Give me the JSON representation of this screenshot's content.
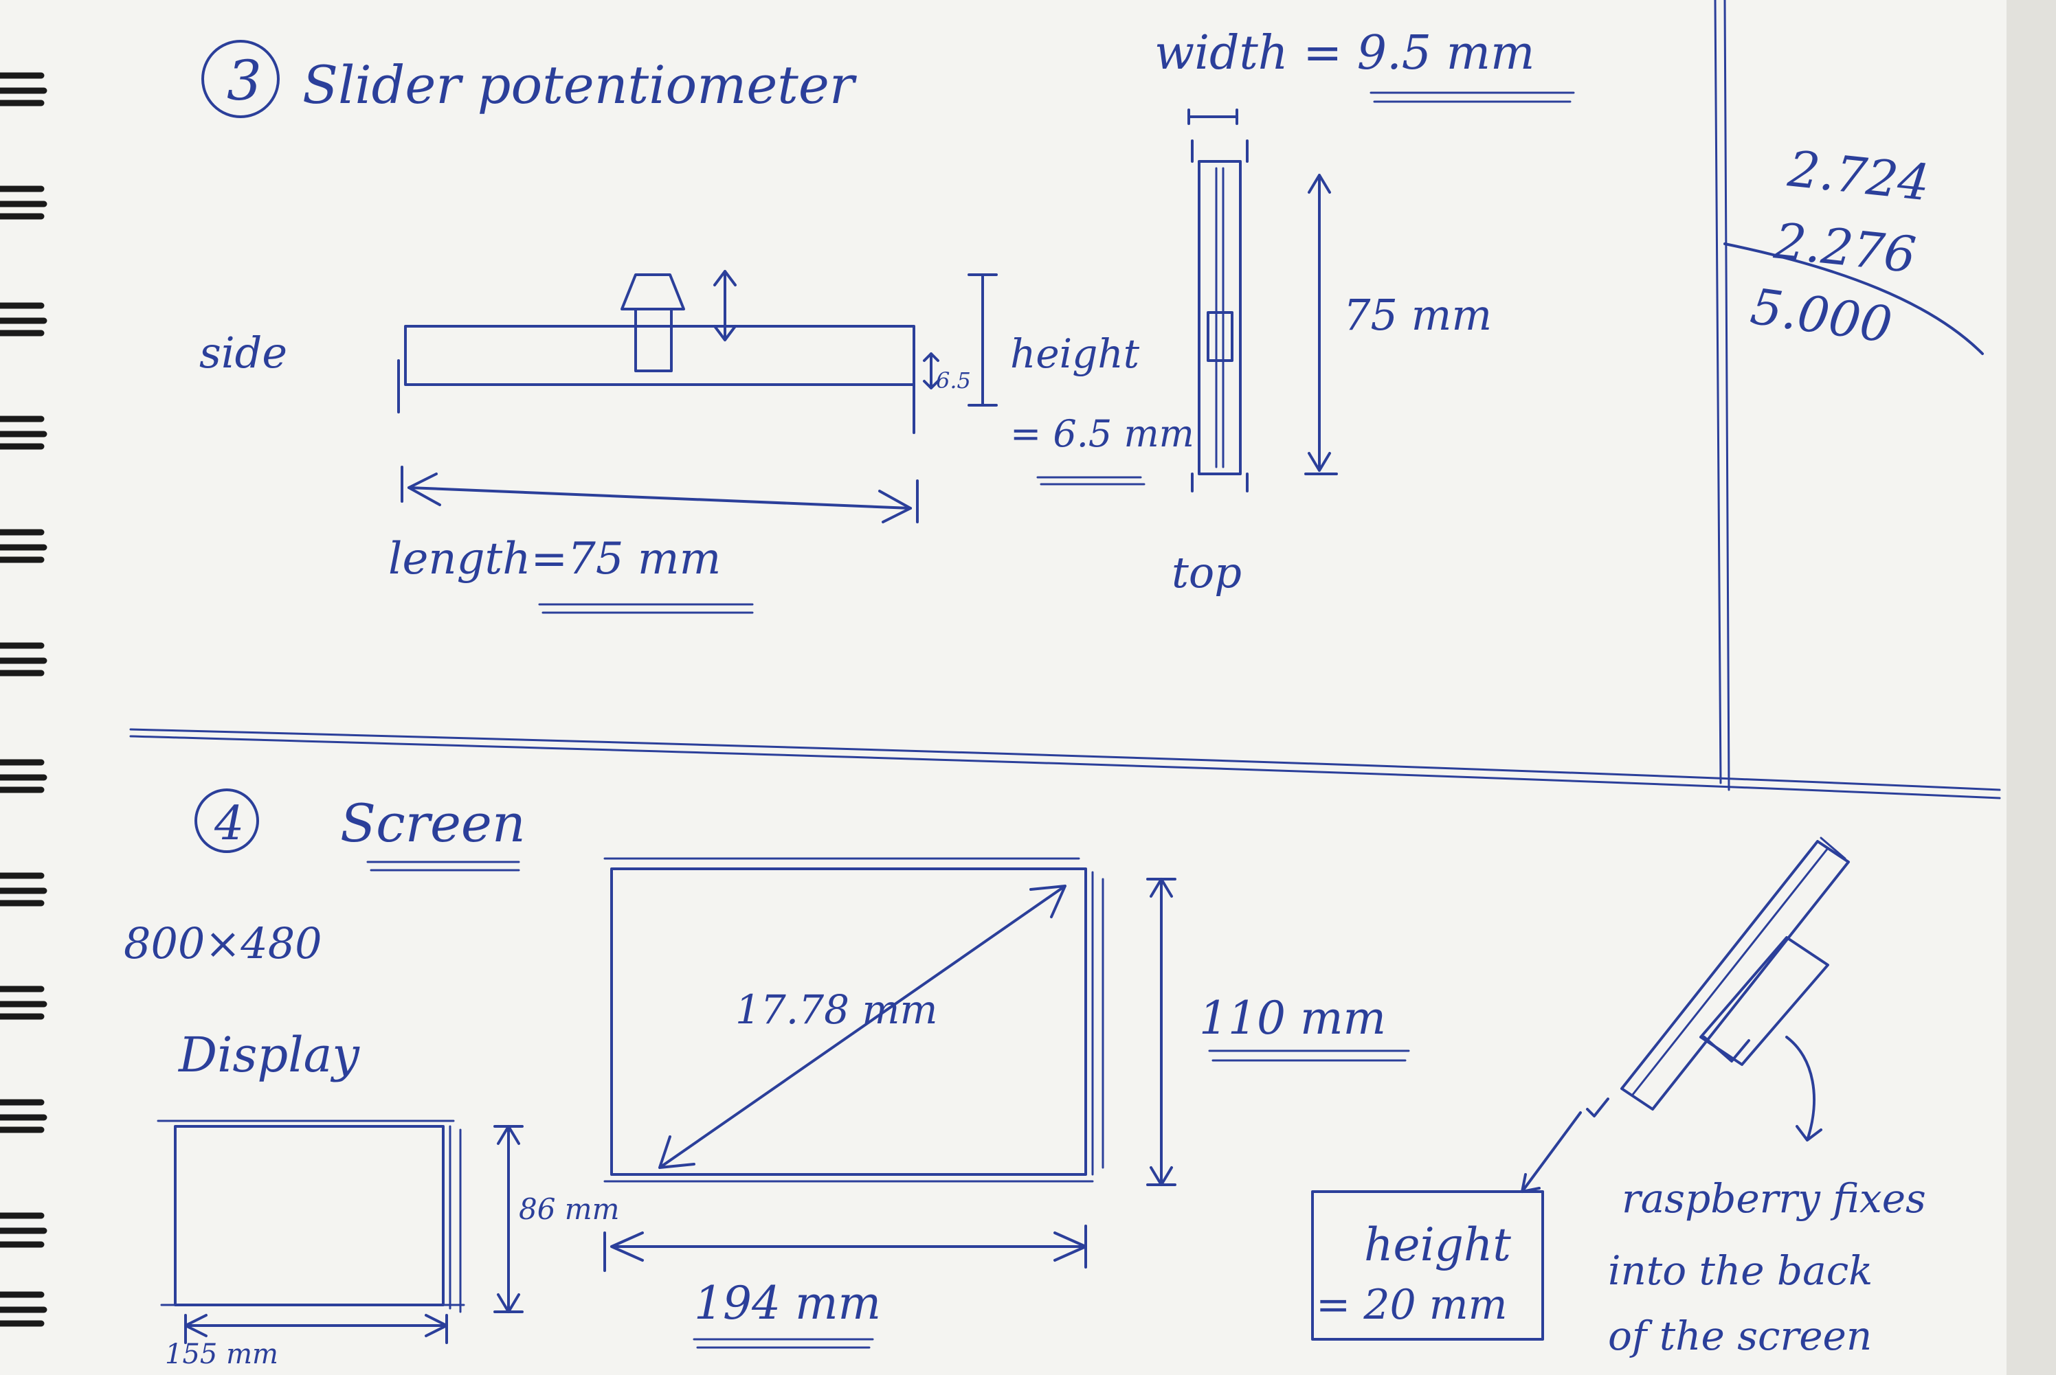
{
  "section3": {
    "number": "3",
    "title": "Slider potentiometer",
    "side_label": "side",
    "top_label": "top",
    "length_label": "length=75 mm",
    "height_label_1": "height",
    "height_label_2": "= 6.5 mm",
    "height_small": "6.5",
    "width_label": "width = 9.5 mm",
    "top_length_label": "75 mm"
  },
  "calculation": {
    "line1": "2.724",
    "line2": "2.276",
    "result": "5.000"
  },
  "section4": {
    "number": "4",
    "title": "Screen",
    "resolution": "800×480",
    "display_label": "Display",
    "display_height": "86 mm",
    "display_width": "155 mm",
    "screen_diagonal": "17.78 mm",
    "screen_height": "110 mm",
    "screen_width": "194 mm",
    "box_height_1": "height",
    "box_height_2": "= 20 mm",
    "note_line1": "raspberry fixes",
    "note_line2": "into the back",
    "note_line3": "of the screen"
  }
}
